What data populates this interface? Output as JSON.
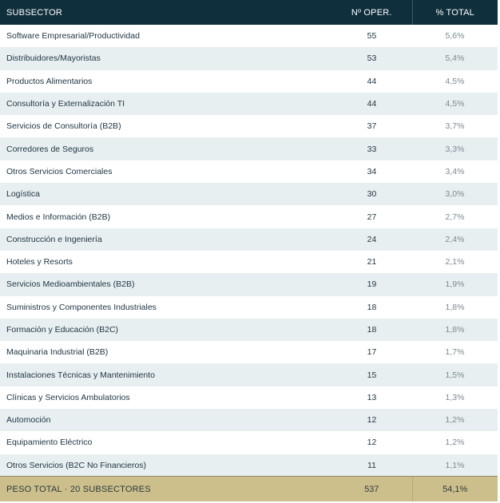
{
  "header": {
    "col_subsector": "SUBSECTOR",
    "col_ops": "Nº OPER.",
    "col_pct": "% TOTAL"
  },
  "rows": [
    {
      "name": "Software Empresarial/Productividad",
      "ops": "55",
      "pct": "5,6%"
    },
    {
      "name": "Distribuidores/Mayoristas",
      "ops": "53",
      "pct": "5,4%"
    },
    {
      "name": "Productos Alimentarios",
      "ops": "44",
      "pct": "4,5%"
    },
    {
      "name": "Consultoría y Externalización TI",
      "ops": "44",
      "pct": "4,5%"
    },
    {
      "name": "Servicios de Consultoría (B2B)",
      "ops": "37",
      "pct": "3,7%"
    },
    {
      "name": "Corredores de Seguros",
      "ops": "33",
      "pct": "3,3%"
    },
    {
      "name": "Otros Servicios Comerciales",
      "ops": "34",
      "pct": "3,4%"
    },
    {
      "name": "Logística",
      "ops": "30",
      "pct": "3,0%"
    },
    {
      "name": "Medios e Información (B2B)",
      "ops": "27",
      "pct": "2,7%"
    },
    {
      "name": "Construcción e Ingeniería",
      "ops": "24",
      "pct": "2,4%"
    },
    {
      "name": "Hoteles y Resorts",
      "ops": "21",
      "pct": "2,1%"
    },
    {
      "name": "Servicios Medioambientales (B2B)",
      "ops": "19",
      "pct": "1,9%"
    },
    {
      "name": "Suministros y Componentes Industriales",
      "ops": "18",
      "pct": "1,8%"
    },
    {
      "name": "Formación y Educación (B2C)",
      "ops": "18",
      "pct": "1,8%"
    },
    {
      "name": "Maquinaria Industrial (B2B)",
      "ops": "17",
      "pct": "1,7%"
    },
    {
      "name": "Instalaciones Técnicas y Mantenimiento",
      "ops": "15",
      "pct": "1,5%"
    },
    {
      "name": "Clínicas y Servicios Ambulatorios",
      "ops": "13",
      "pct": "1,3%"
    },
    {
      "name": "Automoción",
      "ops": "12",
      "pct": "1,2%"
    },
    {
      "name": "Equipamiento Eléctrico",
      "ops": "12",
      "pct": "1,2%"
    },
    {
      "name": "Otros Servicios (B2C No Financieros)",
      "ops": "11",
      "pct": "1,1%"
    }
  ],
  "footer": {
    "label": "PESO TOTAL · 20 SUBSECTORES",
    "ops": "537",
    "pct": "54,1%"
  },
  "colors": {
    "header_bg": "#0f2f3c",
    "row_alt_bg": "#e8eff1",
    "footer_bg": "#cdbf8b"
  }
}
